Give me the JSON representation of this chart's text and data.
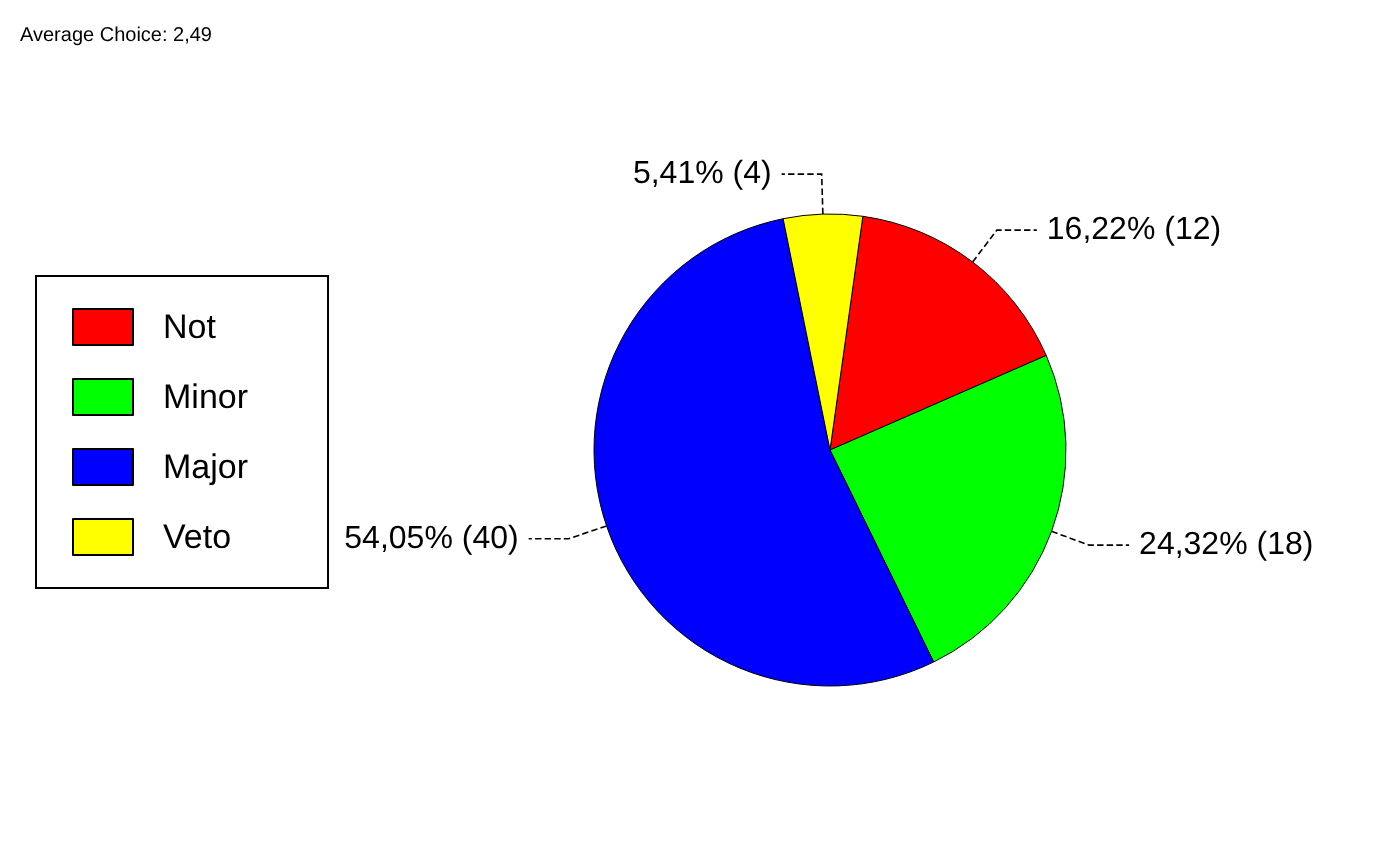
{
  "chart_data": {
    "type": "pie",
    "title": "Average Choice: 2,49",
    "categories": [
      "Not",
      "Minor",
      "Major",
      "Veto"
    ],
    "values": [
      12,
      18,
      40,
      4
    ],
    "colors": [
      "#ff0000",
      "#00ff00",
      "#0000ff",
      "#ffff00"
    ],
    "value_labels": [
      "16,22% (12)",
      "24,32% (18)",
      "54,05% (40)",
      "5,41% (4)"
    ],
    "legend": "left"
  }
}
